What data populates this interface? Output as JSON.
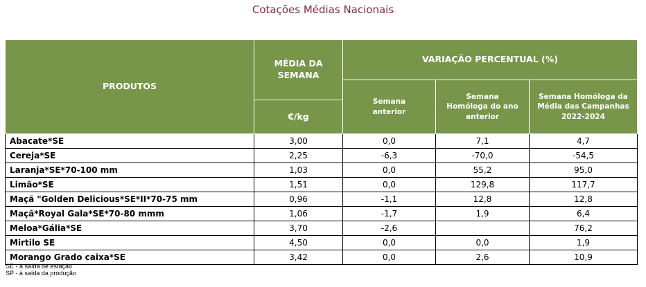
{
  "title": "Cotações Médias Nacionais",
  "headers": {
    "products": "PRODUTOS",
    "week_avg": "MÉDIA DA SEMANA",
    "unit": "€/kg",
    "variation": "VARIAÇÃO PERCENTUAL (%)",
    "prev_week": "Semana anterior",
    "same_week_prev_year": "Semana Homóloga do ano anterior",
    "same_week_campaign_avg": "Semana Homóloga da Média das Campanhas 2022-2024"
  },
  "rows": [
    {
      "product": "Abacate*SE",
      "price": "3,00",
      "prev_week": "0,0",
      "prev_year": "7,1",
      "campaign_avg": "4,7"
    },
    {
      "product": "Cereja*SE",
      "price": "2,25",
      "prev_week": "-6,3",
      "prev_year": "-70,0",
      "campaign_avg": "-54,5"
    },
    {
      "product": "Laranja*SE*70-100 mm",
      "price": "1,03",
      "prev_week": "0,0",
      "prev_year": "55,2",
      "campaign_avg": "95,0"
    },
    {
      "product": "Limão*SE",
      "price": "1,51",
      "prev_week": "0,0",
      "prev_year": "129,8",
      "campaign_avg": "117,7"
    },
    {
      "product": "Maçã \"Golden Delicious*SE*II*70-75 mm",
      "price": "0,96",
      "prev_week": "-1,1",
      "prev_year": "12,8",
      "campaign_avg": "12,8"
    },
    {
      "product": "Maçã*Royal Gala*SE*70-80 mmm",
      "price": "1,06",
      "prev_week": "-1,7",
      "prev_year": "1,9",
      "campaign_avg": "6,4"
    },
    {
      "product": "Meloa*Gália*SE",
      "price": "3,70",
      "prev_week": "-2,6",
      "prev_year": "",
      "campaign_avg": "76,2"
    },
    {
      "product": "Mirtilo SE",
      "price": "4,50",
      "prev_week": "0,0",
      "prev_year": "0,0",
      "campaign_avg": "1,9"
    },
    {
      "product": "Morango Grado caixa*SE",
      "price": "3,42",
      "prev_week": "0,0",
      "prev_year": "2,6",
      "campaign_avg": "10,9"
    }
  ],
  "notes": [
    "SE - à saída de estação",
    "SP - à saída da produção"
  ],
  "colors": {
    "header_bg": "#77964a",
    "title": "#7b2b3d"
  }
}
